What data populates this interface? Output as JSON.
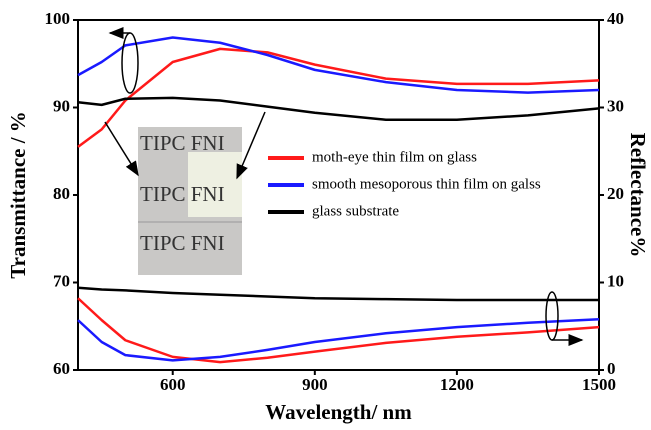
{
  "chart_data": {
    "type": "line",
    "xlabel": "Wavelength/ nm",
    "ylabel": "Transmittance / %",
    "y2label": "Reflectance%",
    "x": [
      400,
      450,
      500,
      600,
      700,
      800,
      900,
      1050,
      1200,
      1350,
      1500
    ],
    "series": [
      {
        "name": "moth-eye thin film on glass",
        "color": "#ff1a1a",
        "values": [
          85.5,
          87.5,
          90.8,
          95.2,
          96.7,
          96.3,
          94.9,
          93.3,
          92.7,
          92.7,
          93.1
        ]
      },
      {
        "name": "smooth mesoporous thin film on galss",
        "color": "#1a1aff",
        "values": [
          93.7,
          95.2,
          97.1,
          98.0,
          97.4,
          96.0,
          94.3,
          92.9,
          92.0,
          91.7,
          92.0
        ]
      },
      {
        "name": "glass substrate",
        "color": "#000000",
        "values": [
          90.6,
          90.3,
          91.0,
          91.1,
          90.8,
          90.1,
          89.4,
          88.6,
          88.6,
          89.1,
          89.9
        ]
      },
      {
        "color": "#ff1a1a",
        "axis": "y2",
        "values": [
          8.2,
          5.7,
          3.4,
          1.5,
          0.9,
          1.4,
          2.1,
          3.1,
          3.8,
          4.3,
          4.9
        ]
      },
      {
        "color": "#1a1aff",
        "axis": "y2",
        "values": [
          5.7,
          3.2,
          1.7,
          1.1,
          1.5,
          2.3,
          3.2,
          4.2,
          4.9,
          5.4,
          5.8
        ]
      },
      {
        "color": "#000000",
        "axis": "y2",
        "values": [
          9.4,
          9.2,
          9.1,
          8.8,
          8.6,
          8.4,
          8.2,
          8.1,
          8.0,
          8.0,
          8.0
        ]
      }
    ],
    "xlim": [
      400,
      1500
    ],
    "xticks": [
      600,
      900,
      1200,
      1500
    ],
    "ylim": [
      60,
      100
    ],
    "yticks": [
      60,
      70,
      80,
      90,
      100
    ],
    "y2lim": [
      0,
      40
    ],
    "y2ticks": [
      0,
      10,
      20,
      30,
      40
    ],
    "legend": "center-right",
    "inset_labels": [
      "TIPC FNI",
      "TIPC FNI",
      "TIPC FNI"
    ]
  }
}
